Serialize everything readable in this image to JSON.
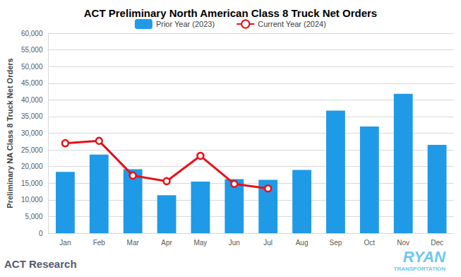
{
  "chart_data": {
    "type": "bar",
    "title": "ACT Preliminary North American Class 8 Truck Net Orders",
    "y_label": "Preliminary NA Class 8 Truck Net Orders",
    "categories": [
      "Jan",
      "Feb",
      "Mar",
      "Apr",
      "May",
      "Jun",
      "Jul",
      "Aug",
      "Sep",
      "Oct",
      "Nov",
      "Dec"
    ],
    "series": [
      {
        "name": "Prior Year (2023)",
        "type": "bar",
        "color": "#1f9ae6",
        "values": [
          18400,
          23600,
          19200,
          11400,
          15500,
          16200,
          16000,
          19000,
          36800,
          32000,
          41800,
          26500
        ]
      },
      {
        "name": "Current Year (2024)",
        "type": "line",
        "color": "#e8101a",
        "marker": "circle",
        "values": [
          27000,
          27700,
          17300,
          15600,
          23200,
          14800,
          13400,
          null,
          null,
          null,
          null,
          null
        ]
      }
    ],
    "ylim": [
      0,
      60000
    ],
    "yticks": [
      0,
      {
        "value": 5000,
        "label": "5,000"
      },
      {
        "value": 10000,
        "label": "10,000"
      },
      {
        "value": 15000,
        "label": "15,000"
      },
      {
        "value": 20000,
        "label": "20,000"
      },
      {
        "value": 25000,
        "label": "25,000"
      },
      {
        "value": 30000,
        "label": "30,000"
      },
      {
        "value": 35000,
        "label": "35,000"
      },
      {
        "value": 40000,
        "label": "40,000"
      },
      {
        "value": 45000,
        "label": "45,000"
      },
      {
        "value": 50000,
        "label": "50,000"
      },
      {
        "value": 55000,
        "label": "55,000"
      },
      {
        "value": 60000,
        "label": "60,000"
      }
    ],
    "grid": true,
    "legend": "top",
    "annotations": [
      "ACT Research",
      "RYAN",
      "TRANSPORTATION"
    ]
  }
}
